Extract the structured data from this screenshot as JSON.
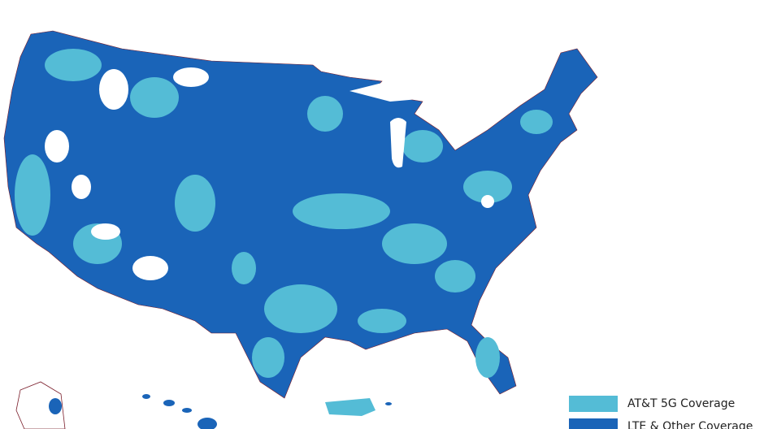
{
  "legend": {
    "items": [
      {
        "label": "AT&T 5G Coverage",
        "color": "#54bcd6"
      },
      {
        "label": "LTE & Other Coverage",
        "color": "#1a64b8"
      }
    ]
  }
}
